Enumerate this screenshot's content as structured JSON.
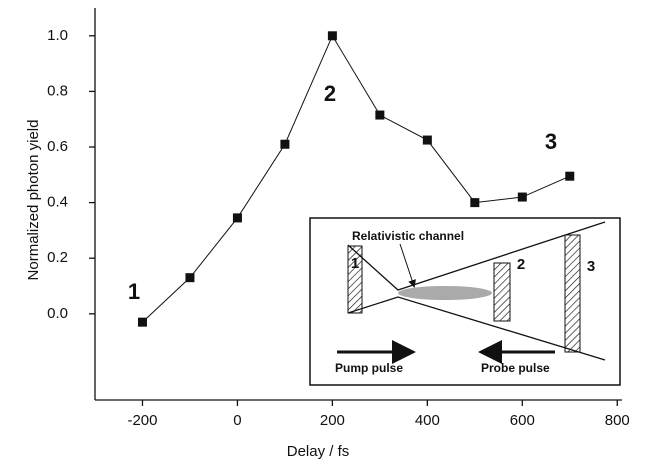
{
  "chart_data": {
    "type": "line",
    "x_label": "Delay / fs",
    "y_label": "Normalized photon yield",
    "x": [
      -200,
      -100,
      0,
      100,
      200,
      300,
      400,
      500,
      600,
      700
    ],
    "series": [
      {
        "color": "#111111",
        "values": [
          -0.03,
          0.13,
          0.345,
          0.61,
          1.0,
          0.715,
          0.625,
          0.4,
          0.42,
          0.495
        ]
      }
    ],
    "xlim": [
      -300,
      810
    ],
    "ylim": [
      -0.31,
      1.1
    ],
    "xticks": [
      -200,
      0,
      200,
      400,
      600,
      800
    ],
    "yticks": [
      {
        "value": 0,
        "label": "0.0"
      },
      {
        "value": 0.2,
        "label": "0.2"
      },
      {
        "value": 0.4,
        "label": "0.4"
      },
      {
        "value": 0.6,
        "label": "0.6"
      },
      {
        "value": 0.8,
        "label": "0.8"
      },
      {
        "value": 1.0,
        "label": "1.0"
      }
    ],
    "annotations": [
      "1",
      "2",
      "3"
    ],
    "inset": {
      "channel": "Relativistic channel",
      "pulses": [
        "1",
        "2",
        "3"
      ],
      "pump": "Pump pulse",
      "probe": "Probe pulse"
    }
  }
}
